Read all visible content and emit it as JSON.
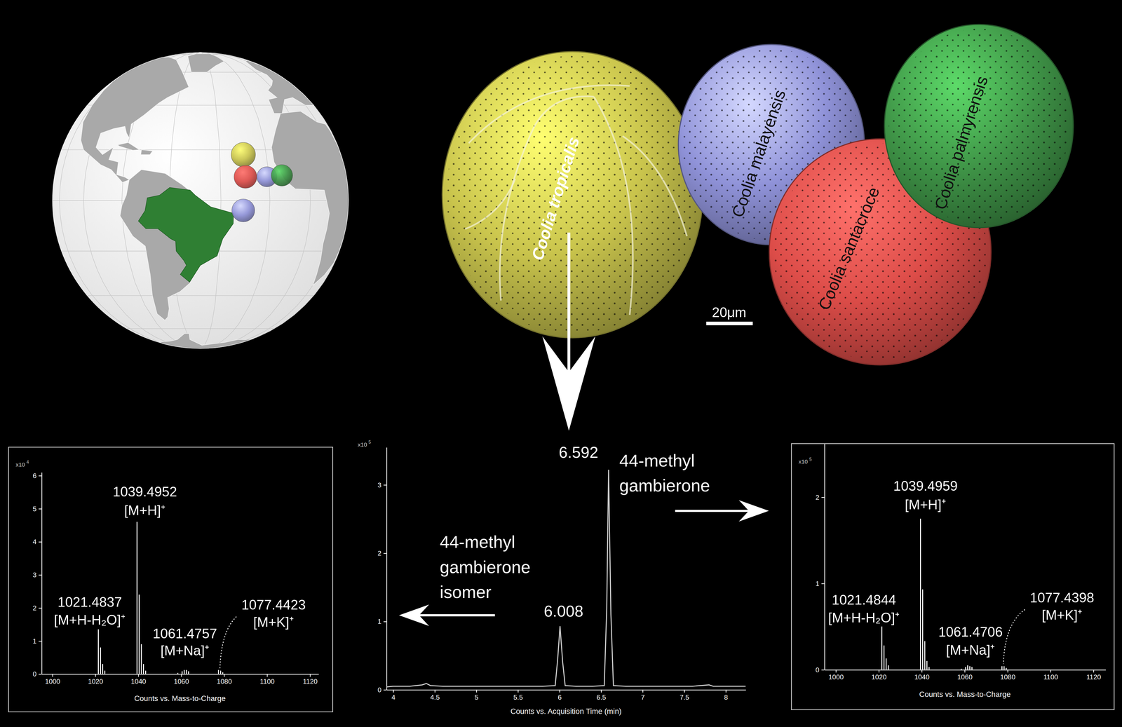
{
  "chart_data": [
    {
      "type": "bar",
      "x_label": "Counts vs. Mass-to-Charge",
      "y_label": "x10",
      "y_exponent": 4,
      "x": [
        1021.4837,
        1022.49,
        1023.49,
        1024.49,
        1039.4952,
        1040.5,
        1041.5,
        1042.5,
        1043.5,
        1058.5,
        1060.5,
        1061.4757,
        1062.48,
        1063.48,
        1077.4423,
        1078.44,
        1079.44
      ],
      "values": [
        1.35,
        0.8,
        0.3,
        0.1,
        4.6,
        2.4,
        0.9,
        0.3,
        0.1,
        0.03,
        0.08,
        0.12,
        0.12,
        0.08,
        0.12,
        0.1,
        0.05
      ],
      "xlim": [
        995,
        1124
      ],
      "xticks": [
        1000,
        1020,
        1040,
        1060,
        1080,
        1100,
        1120
      ],
      "ylim": [
        0,
        6.1
      ],
      "yticks": [
        0,
        1,
        2,
        3,
        4,
        5,
        6
      ],
      "annotations": [
        {
          "x": 1039.4952,
          "label": "[M+H]⁺"
        },
        {
          "x": 1021.4837,
          "label": "[M+H-H₂O]⁺"
        },
        {
          "x": 1061.4757,
          "label": "[M+Na]⁺"
        },
        {
          "x": 1077.4423,
          "label": "[M+K]⁺"
        }
      ]
    },
    {
      "type": "line",
      "x_label": "Counts vs. Acquisition Time (min)",
      "y_label": "x10",
      "y_exponent": 5,
      "x": [
        3.92,
        4.0,
        4.2,
        4.35,
        4.4,
        4.45,
        4.6,
        4.8,
        5.0,
        5.2,
        5.4,
        5.6,
        5.8,
        5.95,
        5.98,
        6.008,
        6.04,
        6.07,
        6.2,
        6.4,
        6.54,
        6.57,
        6.592,
        6.62,
        6.65,
        6.8,
        7.0,
        7.2,
        7.4,
        7.6,
        7.8,
        7.85,
        7.9,
        8.0,
        8.24
      ],
      "values": [
        0.04,
        0.05,
        0.05,
        0.07,
        0.09,
        0.06,
        0.05,
        0.05,
        0.05,
        0.05,
        0.05,
        0.05,
        0.05,
        0.06,
        0.45,
        0.93,
        0.4,
        0.06,
        0.05,
        0.05,
        0.06,
        1.2,
        3.22,
        1.1,
        0.06,
        0.05,
        0.05,
        0.05,
        0.05,
        0.05,
        0.07,
        0.05,
        0.05,
        0.05,
        0.05
      ],
      "xlim": [
        3.92,
        8.24
      ],
      "xticks": [
        4,
        4.5,
        5,
        5.5,
        6,
        6.5,
        7,
        7.5,
        8
      ],
      "ylim": [
        0,
        3.55
      ],
      "yticks": [
        0,
        1,
        2,
        3
      ],
      "peaks": [
        6.592,
        6.008
      ],
      "compounds": [
        {
          "x": 6.592,
          "lines": [
            "44-methyl",
            "gambierone"
          ]
        },
        {
          "x": 6.008,
          "lines": [
            "44-methyl",
            "gambierone",
            "isomer"
          ]
        }
      ]
    },
    {
      "type": "bar",
      "x_label": "Counts vs. Mass-to-Charge",
      "y_label": "x10",
      "y_exponent": 5,
      "x": [
        1021.4844,
        1022.49,
        1023.49,
        1024.49,
        1039.4959,
        1040.5,
        1041.5,
        1042.5,
        1043.5,
        1058.5,
        1060.5,
        1061.4706,
        1062.47,
        1063.47,
        1077.4398,
        1078.44,
        1079.44
      ],
      "values": [
        0.5,
        0.28,
        0.13,
        0.05,
        1.75,
        0.93,
        0.33,
        0.1,
        0.03,
        0.01,
        0.03,
        0.05,
        0.04,
        0.03,
        0.04,
        0.04,
        0.02
      ],
      "xlim": [
        994.7,
        1125.7
      ],
      "xticks": [
        1000,
        1020,
        1040,
        1060,
        1080,
        1100,
        1120
      ],
      "ylim": [
        0,
        2.62
      ],
      "yticks": [
        0,
        1,
        2
      ],
      "annotations": [
        {
          "x": 1039.4959,
          "label": "[M+H]⁺"
        },
        {
          "x": 1021.4844,
          "label": "[M+H-H₂O]⁺"
        },
        {
          "x": 1061.4706,
          "label": "[M+Na]⁺"
        },
        {
          "x": 1077.4398,
          "label": "[M+K]⁺"
        }
      ]
    }
  ],
  "cells": [
    {
      "name": "Coolia tropicalis",
      "color": "#c8c34c"
    },
    {
      "name": "Coolia malayensis",
      "color": "#8f92d8"
    },
    {
      "name": "Coolia santacroce",
      "color": "#dc4c48"
    },
    {
      "name": "Coolia palmyrensis",
      "color": "#3f9447"
    }
  ],
  "scale_bar": "20μm"
}
